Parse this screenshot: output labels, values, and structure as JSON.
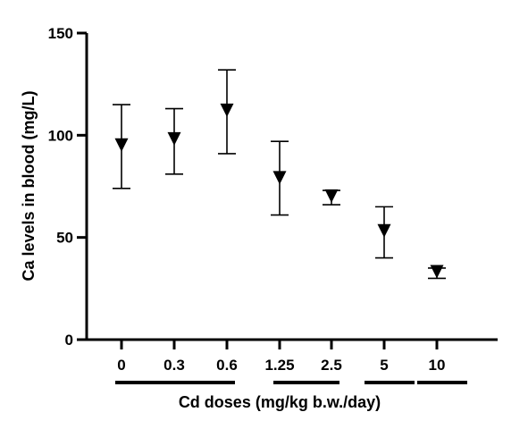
{
  "chart_data": {
    "type": "scatter",
    "title": "",
    "xlabel": "Cd doses (mg/kg b.w./day)",
    "ylabel": "Ca levels in blood (mg/L)",
    "ylim": [
      0,
      150
    ],
    "yticks": [
      0,
      50,
      100,
      150
    ],
    "categories": [
      "0",
      "0.3",
      "0.6",
      "1.25",
      "2.5",
      "5",
      "10"
    ],
    "series": [
      {
        "values": [
          95,
          98,
          112,
          79,
          70,
          53,
          33
        ],
        "error_low": [
          74,
          81,
          91,
          61,
          66,
          40,
          30
        ],
        "error_high": [
          115,
          113,
          132,
          97,
          73,
          65,
          35
        ],
        "marker": "triangle-down"
      }
    ],
    "group_bars": [
      {
        "from": "0",
        "to": "0.6"
      },
      {
        "from": "1.25",
        "to": "2.5"
      },
      {
        "from": "5",
        "to": "5"
      },
      {
        "from": "10",
        "to": "10"
      }
    ],
    "grid": false,
    "legend": "none",
    "color": "#000000"
  }
}
